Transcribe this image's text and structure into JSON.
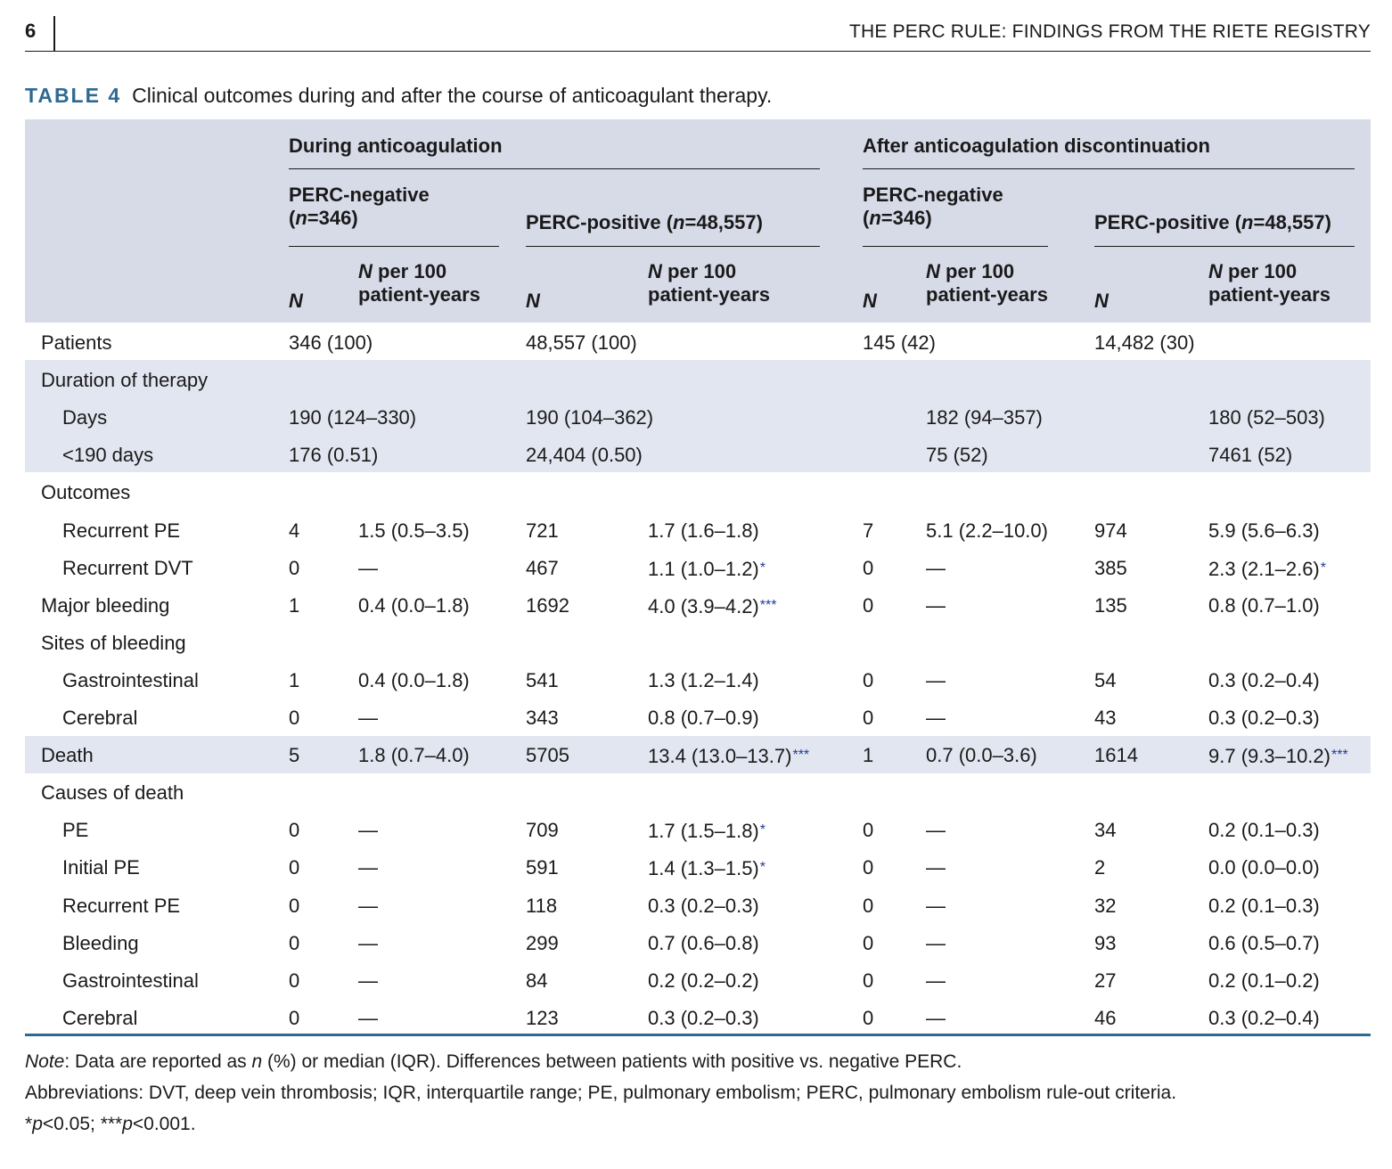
{
  "header": {
    "page_number": "6",
    "running_title": "THE PERC RULE: FINDINGS FROM THE RIETE REGISTRY"
  },
  "caption": {
    "label": "TABLE 4",
    "text": "Clinical outcomes during and after the course of anticoagulant therapy."
  },
  "columns": {
    "group_during": "During anticoagulation",
    "group_after": "After anticoagulation discontinuation",
    "perc_neg_line1": "PERC-negative",
    "perc_neg_n_prefix": "(",
    "perc_neg_n_italic": "n",
    "perc_neg_n_value": "=346)",
    "perc_pos_prefix": "PERC-positive (",
    "perc_pos_n_italic": "n",
    "perc_pos_n_value": "=48,557)",
    "n_label": "N",
    "rate_label_italic": "N",
    "rate_label_line1_rest": " per 100",
    "rate_label_line2": "patient-years"
  },
  "rows": [
    {
      "label": "Patients",
      "indent": false,
      "span": [
        "346 (100)",
        "48,557 (100)",
        "145 (42)",
        "14,482 (30)"
      ]
    },
    {
      "label": "Duration of therapy",
      "indent": false
    },
    {
      "label": "Days",
      "indent": true,
      "duration": [
        "190 (124–330)",
        "190 (104–362)",
        "182 (94–357)",
        "180 (52–503)"
      ]
    },
    {
      "label": "<190 days",
      "indent": true,
      "duration": [
        "176 (0.51)",
        "24,404 (0.50)",
        "75 (52)",
        "7461 (52)"
      ]
    },
    {
      "label": "Outcomes",
      "indent": false
    },
    {
      "label": "Recurrent PE",
      "indent": true,
      "cells": [
        "4",
        "1.5 (0.5–3.5)",
        "721",
        "1.7 (1.6–1.8)",
        "7",
        "5.1 (2.2–10.0)",
        "974",
        "5.9 (5.6–6.3)"
      ],
      "stars": [
        "",
        ""
      ]
    },
    {
      "label": "Recurrent DVT",
      "indent": true,
      "cells": [
        "0",
        "—",
        "467",
        "1.1 (1.0–1.2)",
        "0",
        "—",
        "385",
        "2.3 (2.1–2.6)"
      ],
      "stars": [
        "*",
        "*"
      ]
    },
    {
      "label": "Major bleeding",
      "indent": false,
      "cells": [
        "1",
        "0.4 (0.0–1.8)",
        "1692",
        "4.0 (3.9–4.2)",
        "0",
        "—",
        "135",
        "0.8 (0.7–1.0)"
      ],
      "stars": [
        "***",
        ""
      ]
    },
    {
      "label": "Sites of bleeding",
      "indent": false
    },
    {
      "label": "Gastrointestinal",
      "indent": true,
      "cells": [
        "1",
        "0.4 (0.0–1.8)",
        "541",
        "1.3 (1.2–1.4)",
        "0",
        "—",
        "54",
        "0.3 (0.2–0.4)"
      ],
      "stars": [
        "",
        ""
      ]
    },
    {
      "label": "Cerebral",
      "indent": true,
      "cells": [
        "0",
        "—",
        "343",
        "0.8 (0.7–0.9)",
        "0",
        "—",
        "43",
        "0.3 (0.2–0.3)"
      ],
      "stars": [
        "",
        ""
      ]
    },
    {
      "label": "Death",
      "indent": false,
      "cells": [
        "5",
        "1.8 (0.7–4.0)",
        "5705",
        "13.4 (13.0–13.7)",
        "1",
        "0.7 (0.0–3.6)",
        "1614",
        "9.7 (9.3–10.2)"
      ],
      "stars": [
        "***",
        "***"
      ]
    },
    {
      "label": "Causes of death",
      "indent": false
    },
    {
      "label": "PE",
      "indent": true,
      "cells": [
        "0",
        "—",
        "709",
        "1.7 (1.5–1.8)",
        "0",
        "—",
        "34",
        "0.2 (0.1–0.3)"
      ],
      "stars": [
        "*",
        ""
      ]
    },
    {
      "label": "Initial PE",
      "indent": true,
      "cells": [
        "0",
        "—",
        "591",
        "1.4 (1.3–1.5)",
        "0",
        "—",
        "2",
        "0.0 (0.0–0.0)"
      ],
      "stars": [
        "*",
        ""
      ]
    },
    {
      "label": "Recurrent PE",
      "indent": true,
      "cells": [
        "0",
        "—",
        "118",
        "0.3 (0.2–0.3)",
        "0",
        "—",
        "32",
        "0.2 (0.1–0.3)"
      ],
      "stars": [
        "",
        ""
      ]
    },
    {
      "label": "Bleeding",
      "indent": true,
      "cells": [
        "0",
        "—",
        "299",
        "0.7 (0.6–0.8)",
        "0",
        "—",
        "93",
        "0.6 (0.5–0.7)"
      ],
      "stars": [
        "",
        ""
      ]
    },
    {
      "label": "Gastrointestinal",
      "indent": true,
      "cells": [
        "0",
        "—",
        "84",
        "0.2 (0.2–0.2)",
        "0",
        "—",
        "27",
        "0.2 (0.1–0.2)"
      ],
      "stars": [
        "",
        ""
      ]
    },
    {
      "label": "Cerebral",
      "indent": true,
      "cells": [
        "0",
        "—",
        "123",
        "0.3 (0.2–0.3)",
        "0",
        "—",
        "46",
        "0.3 (0.2–0.4)"
      ],
      "stars": [
        "",
        ""
      ]
    }
  ],
  "notes": {
    "note_label": "Note",
    "note_text_a": ": Data are reported as ",
    "note_text_n": "n",
    "note_text_b": " (%) or median (IQR). Differences between patients with positive vs. negative PERC.",
    "abbreviations": "Abbreviations: DVT, deep vein thrombosis; IQR, interquartile range; PE, pulmonary embolism; PERC, pulmonary embolism rule-out criteria.",
    "sig_1_mark": "*",
    "sig_1_p": "p",
    "sig_1_rest": "<0.05; ",
    "sig_2_mark": "***",
    "sig_2_p": "p",
    "sig_2_rest": "<0.001."
  },
  "colors": {
    "header_band": "#d7dbe8",
    "shaded_rows": "#e2e6f0",
    "accent": "#2d6a93",
    "star": "#1f3b9a"
  }
}
